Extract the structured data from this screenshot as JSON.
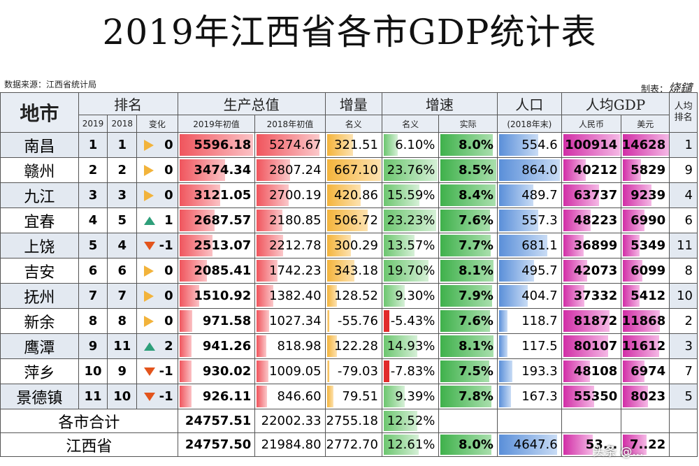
{
  "title": "2019年江西省各市GDP统计表",
  "source": "数据来源：江西省统计局",
  "made_by_label": "制表：",
  "made_by_signature": "烧鑓",
  "headers": {
    "city": "地市",
    "rank": "排名",
    "gdp": "生产总值",
    "increase": "增量",
    "growth": "增速",
    "population": "人口",
    "per_capita": "人均GDP",
    "per_capita_rank": "人均排名",
    "rank_2019": "2019",
    "rank_2018": "2018",
    "change": "变化",
    "gdp_2019": "2019年初值",
    "gdp_2018": "2018年初值",
    "increase_nominal": "名义",
    "growth_nominal": "名义",
    "growth_real": "实际",
    "population_sub": "(2018年末)",
    "rmb": "人民币",
    "usd": "美元"
  },
  "max": {
    "gdp": 5596.18,
    "increase": 667.1,
    "growth": 23.76,
    "real": 8.5,
    "population": 864.0,
    "rmb": 100914,
    "usd": 14628
  },
  "rows": [
    {
      "city": "南昌",
      "r2019": "1",
      "r2018": "1",
      "dir": "same",
      "chg": "0",
      "gdp2019": "5596.18",
      "gdp2018": "5274.67",
      "inc": "321.51",
      "nom": "6.10%",
      "real": "8.0%",
      "pop": "554.6",
      "rmb": "100914",
      "usd": "14628",
      "pcrank": "1"
    },
    {
      "city": "赣州",
      "r2019": "2",
      "r2018": "2",
      "dir": "same",
      "chg": "0",
      "gdp2019": "3474.34",
      "gdp2018": "2807.24",
      "inc": "667.10",
      "nom": "23.76%",
      "real": "8.5%",
      "pop": "864.0",
      "rmb": "40212",
      "usd": "5829",
      "pcrank": "9"
    },
    {
      "city": "九江",
      "r2019": "3",
      "r2018": "3",
      "dir": "same",
      "chg": "0",
      "gdp2019": "3121.05",
      "gdp2018": "2700.19",
      "inc": "420.86",
      "nom": "15.59%",
      "real": "8.4%",
      "pop": "489.7",
      "rmb": "63737",
      "usd": "9239",
      "pcrank": "4"
    },
    {
      "city": "宜春",
      "r2019": "4",
      "r2018": "5",
      "dir": "up",
      "chg": "1",
      "gdp2019": "2687.57",
      "gdp2018": "2180.85",
      "inc": "506.72",
      "nom": "23.23%",
      "real": "7.6%",
      "pop": "557.3",
      "rmb": "48223",
      "usd": "6990",
      "pcrank": "6"
    },
    {
      "city": "上饶",
      "r2019": "5",
      "r2018": "4",
      "dir": "down",
      "chg": "-1",
      "gdp2019": "2513.07",
      "gdp2018": "2212.78",
      "inc": "300.29",
      "nom": "13.57%",
      "real": "7.7%",
      "pop": "681.1",
      "rmb": "36899",
      "usd": "5349",
      "pcrank": "11"
    },
    {
      "city": "吉安",
      "r2019": "6",
      "r2018": "6",
      "dir": "same",
      "chg": "0",
      "gdp2019": "2085.41",
      "gdp2018": "1742.23",
      "inc": "343.18",
      "nom": "19.70%",
      "real": "8.1%",
      "pop": "495.7",
      "rmb": "42073",
      "usd": "6099",
      "pcrank": "8"
    },
    {
      "city": "抚州",
      "r2019": "7",
      "r2018": "7",
      "dir": "same",
      "chg": "0",
      "gdp2019": "1510.92",
      "gdp2018": "1382.40",
      "inc": "128.52",
      "nom": "9.30%",
      "real": "7.9%",
      "pop": "404.7",
      "rmb": "37332",
      "usd": "5412",
      "pcrank": "10"
    },
    {
      "city": "新余",
      "r2019": "8",
      "r2018": "8",
      "dir": "same",
      "chg": "0",
      "gdp2019": "971.58",
      "gdp2018": "1027.34",
      "inc": "-55.76",
      "nom": "-5.43%",
      "real": "7.6%",
      "pop": "118.7",
      "rmb": "81872",
      "usd": "11868",
      "pcrank": "2"
    },
    {
      "city": "鹰潭",
      "r2019": "9",
      "r2018": "11",
      "dir": "up",
      "chg": "2",
      "gdp2019": "941.26",
      "gdp2018": "818.98",
      "inc": "122.28",
      "nom": "14.93%",
      "real": "8.1%",
      "pop": "117.5",
      "rmb": "80107",
      "usd": "11612",
      "pcrank": "3"
    },
    {
      "city": "萍乡",
      "r2019": "10",
      "r2018": "9",
      "dir": "down",
      "chg": "-1",
      "gdp2019": "930.02",
      "gdp2018": "1009.05",
      "inc": "-79.03",
      "nom": "-7.83%",
      "real": "7.5%",
      "pop": "193.3",
      "rmb": "48108",
      "usd": "6974",
      "pcrank": "7"
    },
    {
      "city": "景德镇",
      "r2019": "11",
      "r2018": "10",
      "dir": "down",
      "chg": "-1",
      "gdp2019": "926.11",
      "gdp2018": "846.60",
      "inc": "79.51",
      "nom": "9.39%",
      "real": "7.8%",
      "pop": "167.3",
      "rmb": "55350",
      "usd": "8023",
      "pcrank": "5"
    }
  ],
  "total": {
    "label": "各市合计",
    "gdp2019": "24757.51",
    "gdp2018": "22002.33",
    "inc": "2755.18",
    "nom": "12.52%"
  },
  "province": {
    "label": "江西省",
    "gdp2019": "24757.50",
    "gdp2018": "21984.80",
    "inc": "2772.70",
    "nom": "12.61%",
    "real": "8.0%",
    "pop": "4647.6",
    "rmb": "53...",
    "usd": "7..22"
  },
  "watermark": "头条 @..."
}
